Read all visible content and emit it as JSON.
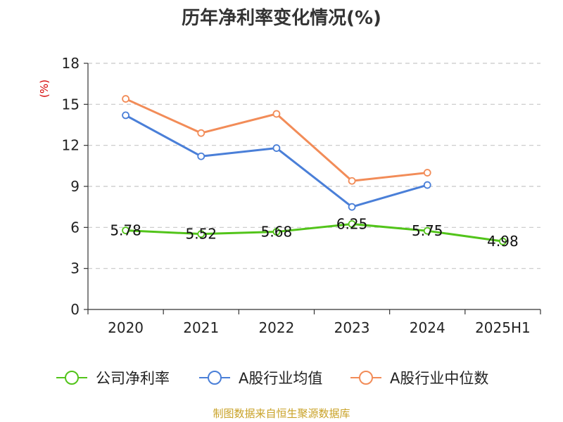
{
  "chart_data": {
    "type": "line",
    "title": "历年净利率变化情况(%)",
    "ylabel": "(%)",
    "xlabel": "",
    "categories": [
      "2020",
      "2021",
      "2022",
      "2023",
      "2024",
      "2025H1"
    ],
    "ylim": [
      0,
      18
    ],
    "yticks": [
      0,
      3,
      6,
      9,
      12,
      15,
      18
    ],
    "grid": true,
    "legend_position": "bottom",
    "series": [
      {
        "name": "公司净利率",
        "color": "#52c41a",
        "values": [
          5.78,
          5.52,
          5.68,
          6.25,
          5.75,
          4.98
        ],
        "labels": [
          "5.78",
          "5.52",
          "5.68",
          "6.25",
          "5.75",
          "4.98"
        ]
      },
      {
        "name": "A股行业均值",
        "color": "#4a7fd8",
        "values": [
          14.2,
          11.2,
          11.8,
          7.5,
          9.1,
          null
        ]
      },
      {
        "name": "A股行业中位数",
        "color": "#f28c58",
        "values": [
          15.4,
          12.9,
          14.3,
          9.4,
          10.0,
          null
        ]
      }
    ],
    "source": "制图数据来自恒生聚源数据库"
  }
}
